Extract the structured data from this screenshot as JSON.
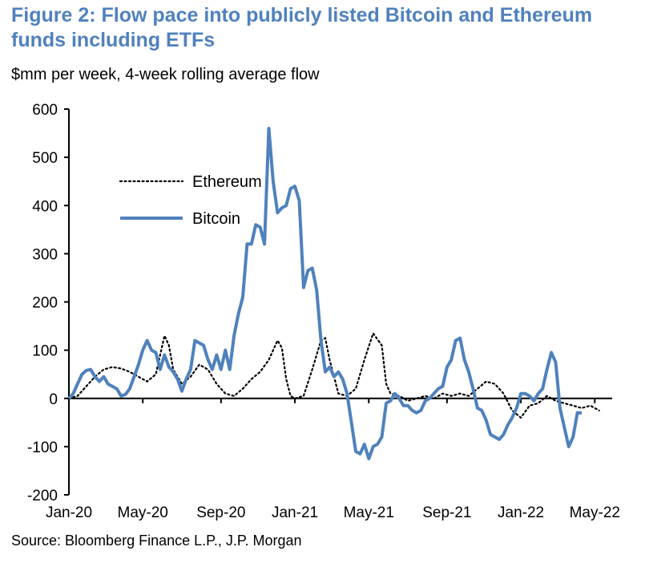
{
  "title": "Figure 2: Flow pace into publicly listed Bitcoin and Ethereum funds including ETFs",
  "subtitle": "$mm per week, 4-week rolling average flow",
  "source": "Source: Bloomberg Finance L.P., J.P. Morgan",
  "colors": {
    "title": "#4F81BD",
    "bitcoin": "#4F81BD",
    "ethereum": "#000000"
  },
  "chart_data": {
    "type": "line",
    "xlabel": "",
    "ylabel": "",
    "ylim": [
      -200,
      600
    ],
    "yticks": [
      600,
      500,
      400,
      300,
      200,
      100,
      0,
      -100,
      -200
    ],
    "xlim": [
      0,
      125
    ],
    "xticks": [
      {
        "label": "Jan-20",
        "x": 0
      },
      {
        "label": "May-20",
        "x": 17
      },
      {
        "label": "Sep-20",
        "x": 35
      },
      {
        "label": "Jan-21",
        "x": 52
      },
      {
        "label": "May-21",
        "x": 69
      },
      {
        "label": "Sep-21",
        "x": 87
      },
      {
        "label": "Jan-22",
        "x": 104
      },
      {
        "label": "May-22",
        "x": 121
      }
    ],
    "legend_placement": "upper-left",
    "series": [
      {
        "name": "Ethereum",
        "style": "dotted",
        "points": [
          [
            0,
            0
          ],
          [
            2,
            5
          ],
          [
            4,
            25
          ],
          [
            6,
            45
          ],
          [
            8,
            60
          ],
          [
            10,
            65
          ],
          [
            12,
            62
          ],
          [
            14,
            55
          ],
          [
            16,
            45
          ],
          [
            18,
            35
          ],
          [
            20,
            50
          ],
          [
            22,
            130
          ],
          [
            23,
            110
          ],
          [
            24,
            60
          ],
          [
            26,
            30
          ],
          [
            28,
            45
          ],
          [
            30,
            70
          ],
          [
            32,
            60
          ],
          [
            34,
            30
          ],
          [
            36,
            10
          ],
          [
            38,
            5
          ],
          [
            40,
            20
          ],
          [
            42,
            40
          ],
          [
            44,
            55
          ],
          [
            46,
            80
          ],
          [
            48,
            120
          ],
          [
            49,
            105
          ],
          [
            50,
            40
          ],
          [
            51,
            5
          ],
          [
            52,
            0
          ],
          [
            54,
            5
          ],
          [
            56,
            60
          ],
          [
            58,
            120
          ],
          [
            59,
            125
          ],
          [
            60,
            80
          ],
          [
            62,
            10
          ],
          [
            64,
            5
          ],
          [
            66,
            20
          ],
          [
            68,
            80
          ],
          [
            70,
            135
          ],
          [
            72,
            110
          ],
          [
            73,
            30
          ],
          [
            74,
            10
          ],
          [
            76,
            5
          ],
          [
            78,
            -5
          ],
          [
            80,
            0
          ],
          [
            82,
            5
          ],
          [
            84,
            0
          ],
          [
            86,
            10
          ],
          [
            88,
            5
          ],
          [
            90,
            10
          ],
          [
            92,
            5
          ],
          [
            94,
            20
          ],
          [
            96,
            35
          ],
          [
            98,
            30
          ],
          [
            100,
            10
          ],
          [
            102,
            -25
          ],
          [
            104,
            -40
          ],
          [
            106,
            -15
          ],
          [
            108,
            -10
          ],
          [
            110,
            5
          ],
          [
            112,
            -5
          ],
          [
            114,
            -10
          ],
          [
            116,
            -15
          ],
          [
            118,
            -20
          ],
          [
            120,
            -15
          ],
          [
            122,
            -25
          ]
        ]
      },
      {
        "name": "Bitcoin",
        "style": "solid",
        "points": [
          [
            0,
            0
          ],
          [
            1,
            10
          ],
          [
            2,
            30
          ],
          [
            3,
            50
          ],
          [
            4,
            58
          ],
          [
            5,
            60
          ],
          [
            6,
            45
          ],
          [
            7,
            35
          ],
          [
            8,
            45
          ],
          [
            9,
            30
          ],
          [
            10,
            25
          ],
          [
            11,
            20
          ],
          [
            12,
            5
          ],
          [
            13,
            8
          ],
          [
            14,
            20
          ],
          [
            15,
            45
          ],
          [
            16,
            70
          ],
          [
            17,
            100
          ],
          [
            18,
            120
          ],
          [
            19,
            100
          ],
          [
            20,
            95
          ],
          [
            21,
            60
          ],
          [
            22,
            90
          ],
          [
            23,
            65
          ],
          [
            24,
            55
          ],
          [
            25,
            40
          ],
          [
            26,
            15
          ],
          [
            27,
            40
          ],
          [
            28,
            60
          ],
          [
            29,
            120
          ],
          [
            30,
            115
          ],
          [
            31,
            110
          ],
          [
            32,
            80
          ],
          [
            33,
            60
          ],
          [
            34,
            90
          ],
          [
            35,
            60
          ],
          [
            36,
            100
          ],
          [
            37,
            60
          ],
          [
            38,
            130
          ],
          [
            39,
            175
          ],
          [
            40,
            210
          ],
          [
            41,
            320
          ],
          [
            42,
            320
          ],
          [
            43,
            360
          ],
          [
            44,
            355
          ],
          [
            45,
            320
          ],
          [
            46,
            560
          ],
          [
            47,
            450
          ],
          [
            48,
            385
          ],
          [
            49,
            395
          ],
          [
            50,
            400
          ],
          [
            51,
            435
          ],
          [
            52,
            440
          ],
          [
            53,
            410
          ],
          [
            54,
            230
          ],
          [
            55,
            265
          ],
          [
            56,
            270
          ],
          [
            57,
            225
          ],
          [
            58,
            120
          ],
          [
            59,
            55
          ],
          [
            60,
            65
          ],
          [
            61,
            45
          ],
          [
            62,
            55
          ],
          [
            63,
            40
          ],
          [
            64,
            10
          ],
          [
            65,
            -50
          ],
          [
            66,
            -110
          ],
          [
            67,
            -115
          ],
          [
            68,
            -95
          ],
          [
            69,
            -125
          ],
          [
            70,
            -100
          ],
          [
            71,
            -95
          ],
          [
            72,
            -80
          ],
          [
            73,
            -10
          ],
          [
            74,
            -5
          ],
          [
            75,
            10
          ],
          [
            76,
            0
          ],
          [
            77,
            -15
          ],
          [
            78,
            -15
          ],
          [
            79,
            -25
          ],
          [
            80,
            -30
          ],
          [
            81,
            -25
          ],
          [
            82,
            -5
          ],
          [
            83,
            0
          ],
          [
            84,
            10
          ],
          [
            85,
            20
          ],
          [
            86,
            25
          ],
          [
            87,
            65
          ],
          [
            88,
            80
          ],
          [
            89,
            120
          ],
          [
            90,
            125
          ],
          [
            91,
            80
          ],
          [
            92,
            55
          ],
          [
            93,
            20
          ],
          [
            94,
            -20
          ],
          [
            95,
            -25
          ],
          [
            96,
            -45
          ],
          [
            97,
            -75
          ],
          [
            98,
            -80
          ],
          [
            99,
            -85
          ],
          [
            100,
            -75
          ],
          [
            101,
            -55
          ],
          [
            102,
            -40
          ],
          [
            103,
            -20
          ],
          [
            104,
            10
          ],
          [
            105,
            10
          ],
          [
            106,
            5
          ],
          [
            107,
            -5
          ],
          [
            108,
            10
          ],
          [
            109,
            20
          ],
          [
            110,
            60
          ],
          [
            111,
            95
          ],
          [
            112,
            75
          ],
          [
            113,
            -20
          ],
          [
            114,
            -60
          ],
          [
            115,
            -100
          ],
          [
            116,
            -80
          ],
          [
            117,
            -30
          ],
          [
            118,
            -30
          ]
        ]
      }
    ]
  }
}
